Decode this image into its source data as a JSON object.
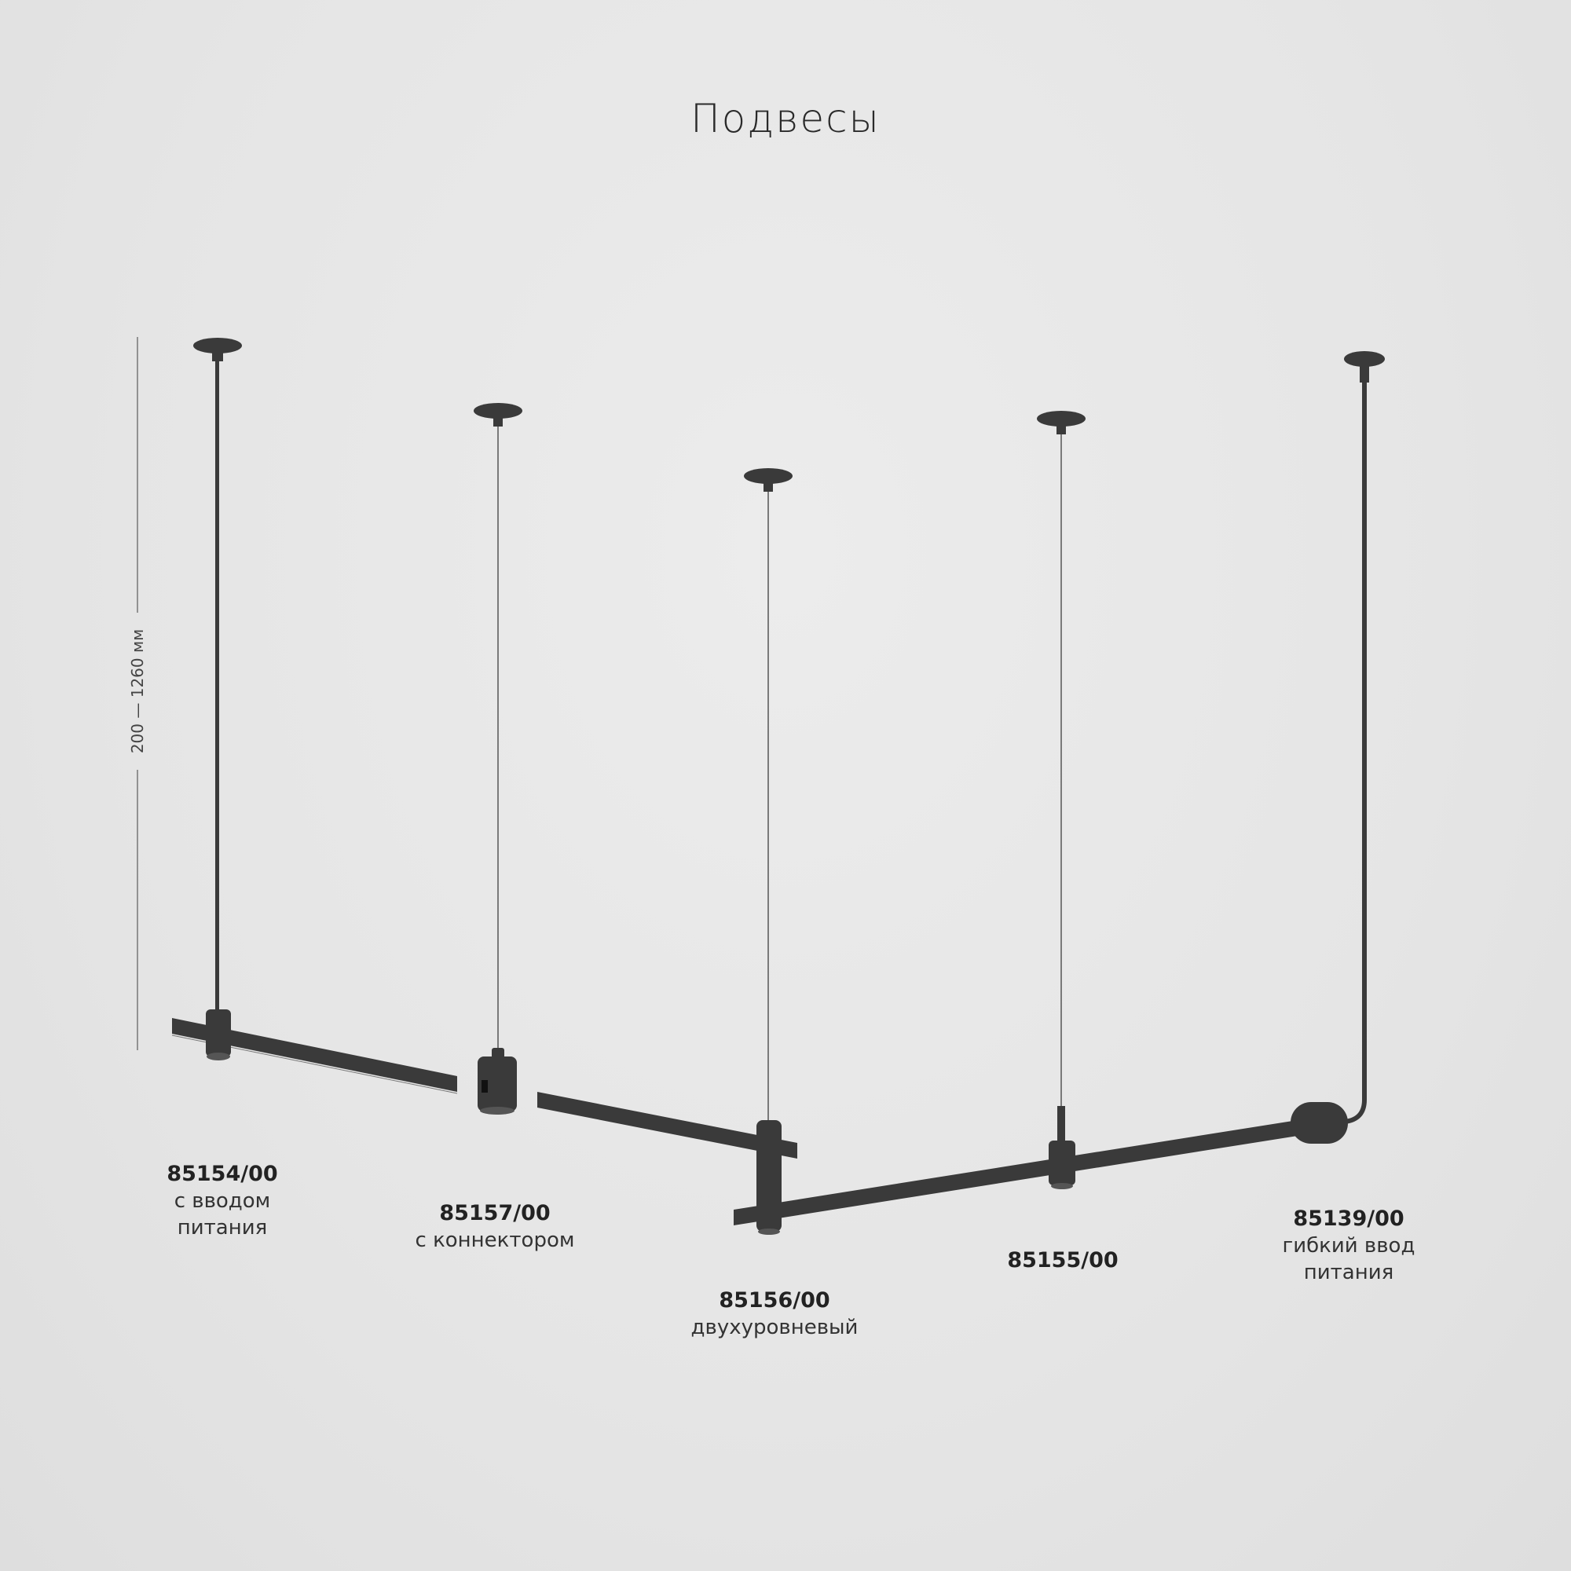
{
  "title": "Подвесы",
  "dimension": "200 — 1260 мм",
  "products": [
    {
      "code": "85154/00",
      "desc": [
        "с вводом",
        "питания"
      ]
    },
    {
      "code": "85157/00",
      "desc": [
        "с коннектором"
      ]
    },
    {
      "code": "85156/00",
      "desc": [
        "двухуровневый"
      ]
    },
    {
      "code": "85155/00",
      "desc": []
    },
    {
      "code": "85139/00",
      "desc": [
        "гибкий ввод",
        "питания"
      ]
    }
  ],
  "colors": {
    "background": "#e4e4e4",
    "fixture": "#3a3a3a",
    "text": "#1e1e1e"
  }
}
